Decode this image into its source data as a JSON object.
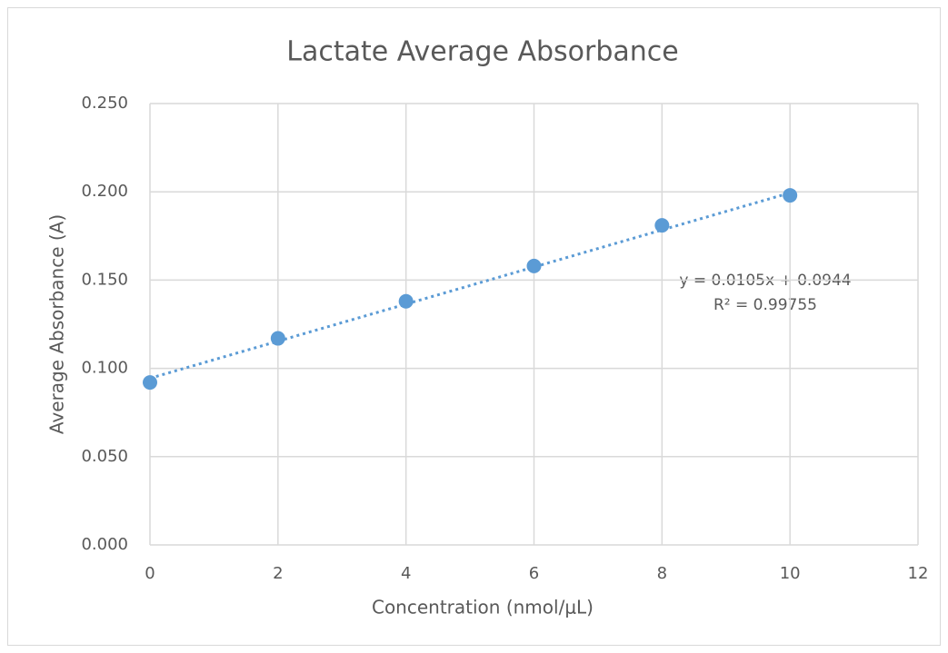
{
  "chart_data": {
    "type": "scatter",
    "title": "Lactate Average Absorbance",
    "x_label": "Concentration (nmol/μL)",
    "y_label": "Average Absorbance (A)",
    "series": [
      {
        "color": "#5b9bd5",
        "x": [
          0,
          2,
          4,
          6,
          8,
          10
        ],
        "values": [
          0.092,
          0.117,
          0.138,
          0.158,
          0.181,
          0.198
        ]
      }
    ],
    "trendline": {
      "slope": 0.0105,
      "intercept": 0.0944,
      "color": "#5b9bd5",
      "style": "dotted"
    },
    "annotations": [
      "y = 0.0105x + 0.0944",
      "R² = 0.99755"
    ],
    "xlim": [
      0,
      12
    ],
    "xticks": [
      0,
      2,
      4,
      6,
      8,
      10,
      12
    ],
    "ylim": [
      0,
      0.25
    ],
    "yticks": [
      {
        "value": 0,
        "label": "0.000"
      },
      {
        "value": 0.05,
        "label": "0.050"
      },
      {
        "value": 0.1,
        "label": "0.100"
      },
      {
        "value": 0.15,
        "label": "0.150"
      },
      {
        "value": 0.2,
        "label": "0.200"
      },
      {
        "value": 0.25,
        "label": "0.250"
      }
    ],
    "grid": true
  }
}
